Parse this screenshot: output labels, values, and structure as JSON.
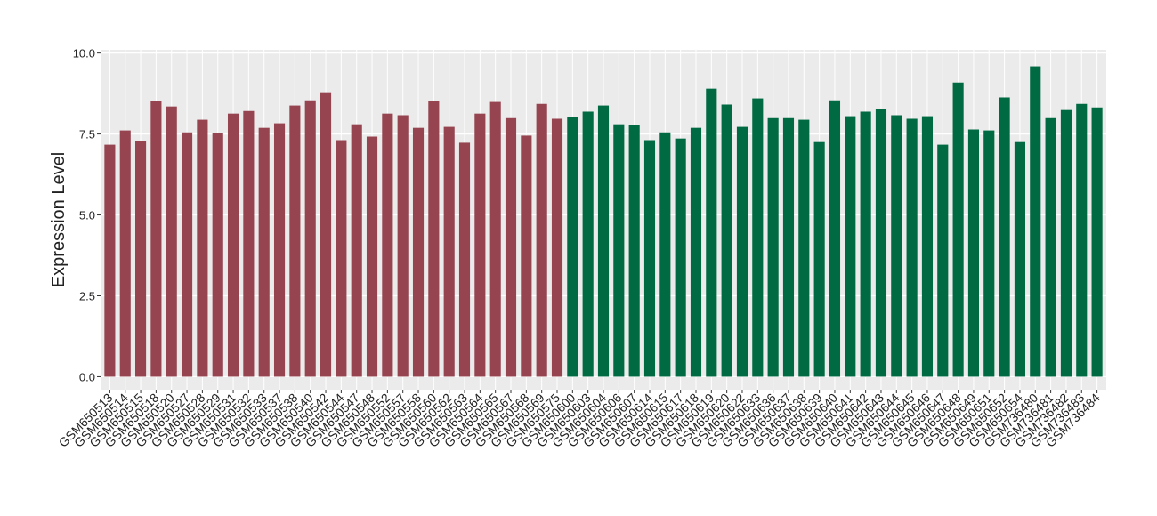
{
  "chart_data": {
    "type": "bar",
    "y_label": "Expression Level",
    "categories": [
      "GSM650513",
      "GSM650514",
      "GSM650515",
      "GSM650518",
      "GSM650520",
      "GSM650527",
      "GSM650528",
      "GSM650529",
      "GSM650531",
      "GSM650532",
      "GSM650533",
      "GSM650537",
      "GSM650538",
      "GSM650540",
      "GSM650542",
      "GSM650544",
      "GSM650547",
      "GSM650548",
      "GSM650552",
      "GSM650557",
      "GSM650558",
      "GSM650560",
      "GSM650562",
      "GSM650563",
      "GSM650564",
      "GSM650565",
      "GSM650567",
      "GSM650568",
      "GSM650569",
      "GSM650575",
      "GSM650600",
      "GSM650603",
      "GSM650604",
      "GSM650606",
      "GSM650607",
      "GSM650614",
      "GSM650615",
      "GSM650617",
      "GSM650618",
      "GSM650619",
      "GSM650620",
      "GSM650622",
      "GSM650633",
      "GSM650636",
      "GSM650637",
      "GSM650638",
      "GSM650639",
      "GSM650640",
      "GSM650641",
      "GSM650642",
      "GSM650643",
      "GSM650644",
      "GSM650645",
      "GSM650646",
      "GSM650647",
      "GSM650648",
      "GSM650649",
      "GSM650651",
      "GSM650652",
      "GSM650654",
      "GSM736480",
      "GSM736481",
      "GSM736482",
      "GSM736483",
      "GSM736484"
    ],
    "values": [
      7.17,
      7.61,
      7.28,
      8.52,
      8.35,
      7.55,
      7.94,
      7.53,
      8.13,
      8.21,
      7.69,
      7.83,
      8.38,
      8.54,
      8.79,
      7.31,
      7.8,
      7.42,
      8.13,
      8.08,
      7.69,
      8.52,
      7.72,
      7.23,
      8.13,
      8.49,
      7.99,
      7.45,
      8.43,
      7.97,
      8.02,
      8.19,
      8.38,
      7.8,
      7.77,
      7.31,
      7.55,
      7.36,
      7.69,
      8.9,
      8.41,
      7.72,
      8.6,
      7.99,
      7.99,
      7.94,
      7.25,
      8.54,
      8.05,
      8.19,
      8.27,
      8.08,
      7.97,
      8.05,
      7.17,
      9.09,
      7.64,
      7.61,
      8.63,
      7.25,
      9.59,
      7.99,
      8.24,
      8.43,
      8.32
    ],
    "colors": [
      "#964550",
      "#964550",
      "#964550",
      "#964550",
      "#964550",
      "#964550",
      "#964550",
      "#964550",
      "#964550",
      "#964550",
      "#964550",
      "#964550",
      "#964550",
      "#964550",
      "#964550",
      "#964550",
      "#964550",
      "#964550",
      "#964550",
      "#964550",
      "#964550",
      "#964550",
      "#964550",
      "#964550",
      "#964550",
      "#964550",
      "#964550",
      "#964550",
      "#964550",
      "#964550",
      "#006a43",
      "#006a43",
      "#006a43",
      "#006a43",
      "#006a43",
      "#006a43",
      "#006a43",
      "#006a43",
      "#006a43",
      "#006a43",
      "#006a43",
      "#006a43",
      "#006a43",
      "#006a43",
      "#006a43",
      "#006a43",
      "#006a43",
      "#006a43",
      "#006a43",
      "#006a43",
      "#006a43",
      "#006a43",
      "#006a43",
      "#006a43",
      "#006a43",
      "#006a43",
      "#006a43",
      "#006a43",
      "#006a43",
      "#006a43",
      "#006a43",
      "#006a43",
      "#006a43",
      "#006a43",
      "#006a43"
    ],
    "ylim": [
      -0.4,
      10.1
    ],
    "yticks": [
      {
        "value": 0,
        "label": "0.0"
      },
      {
        "value": 2.5,
        "label": "2.5"
      },
      {
        "value": 5,
        "label": "5.0"
      },
      {
        "value": 7.5,
        "label": "7.5"
      },
      {
        "value": 10,
        "label": "10.0"
      }
    ],
    "grid": true
  }
}
